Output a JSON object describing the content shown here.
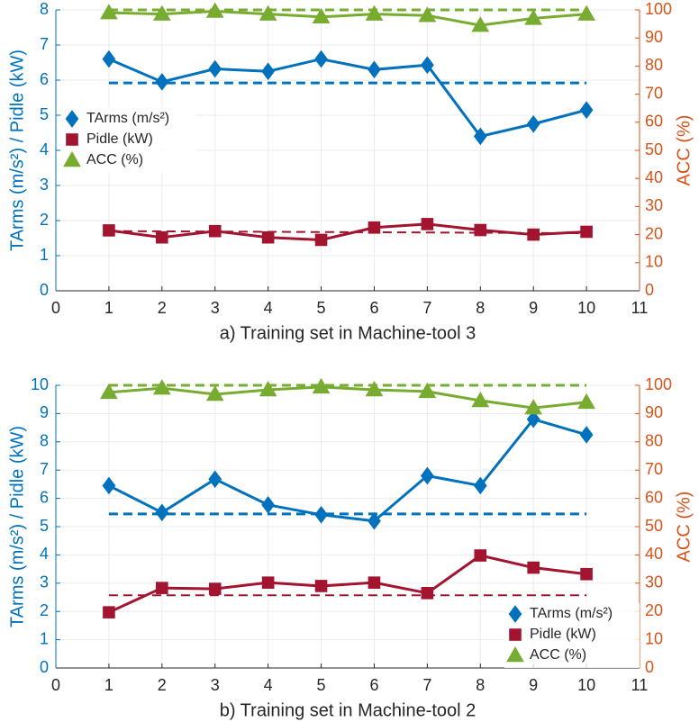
{
  "chart_data": [
    {
      "type": "line",
      "xlabel": "a) Training set in Machine-tool 3",
      "ylabel": "TArms (m/s²) / Pidle (kW)",
      "y2label": "ACC (%)",
      "x": [
        1,
        2,
        3,
        4,
        5,
        6,
        7,
        8,
        9,
        10
      ],
      "xlim": [
        0,
        11
      ],
      "xticks": [
        0,
        1,
        2,
        3,
        4,
        5,
        6,
        7,
        8,
        9,
        10,
        11
      ],
      "ylim": [
        0,
        8
      ],
      "yticks": [
        0,
        1,
        2,
        3,
        4,
        5,
        6,
        7,
        8
      ],
      "y2lim": [
        0,
        100
      ],
      "y2ticks": [
        0,
        10,
        20,
        30,
        40,
        50,
        60,
        70,
        80,
        90,
        100
      ],
      "grid": true,
      "legend": "center left",
      "y_color": "#0072bd",
      "y2_color": "#d95319",
      "series": [
        {
          "name": "TArms (m/s²)",
          "color": "#0072bd",
          "marker": "diamond",
          "values": [
            6.6,
            5.95,
            6.32,
            6.25,
            6.6,
            6.3,
            6.43,
            4.4,
            4.75,
            5.15
          ]
        },
        {
          "name": "Pidle (kW)",
          "color": "#a2142f",
          "marker": "square",
          "values": [
            1.72,
            1.52,
            1.7,
            1.52,
            1.45,
            1.8,
            1.9,
            1.73,
            1.6,
            1.68
          ]
        },
        {
          "name": "ACC (%)",
          "color": "#77ac30",
          "marker": "triangle",
          "axis": "y2",
          "values": [
            99,
            98.5,
            99.5,
            98.5,
            97.5,
            98.5,
            98,
            94.5,
            97,
            98.5
          ]
        }
      ],
      "reference_lines": [
        {
          "color": "#0072bd",
          "x": [
            1,
            10
          ],
          "values": [
            5.92,
            5.92
          ]
        },
        {
          "color": "#a2142f",
          "x": [
            1,
            10
          ],
          "values": [
            1.7,
            1.64
          ]
        },
        {
          "color": "#77ac30",
          "axis": "y2",
          "x": [
            1,
            10
          ],
          "values": [
            100,
            100
          ]
        }
      ]
    },
    {
      "type": "line",
      "xlabel": "b) Training set in Machine-tool 2",
      "ylabel": "TArms (m/s²) / Pidle (kW)",
      "y2label": "ACC (%)",
      "x": [
        1,
        2,
        3,
        4,
        5,
        6,
        7,
        8,
        9,
        10
      ],
      "xlim": [
        0,
        11
      ],
      "xticks": [
        0,
        1,
        2,
        3,
        4,
        5,
        6,
        7,
        8,
        9,
        10,
        11
      ],
      "ylim": [
        0,
        10
      ],
      "yticks": [
        0,
        1,
        2,
        3,
        4,
        5,
        6,
        7,
        8,
        9,
        10
      ],
      "y2lim": [
        0,
        100
      ],
      "y2ticks": [
        0,
        10,
        20,
        30,
        40,
        50,
        60,
        70,
        80,
        90,
        100
      ],
      "grid": true,
      "legend": "lower right",
      "y_color": "#0072bd",
      "y2_color": "#d95319",
      "series": [
        {
          "name": "TArms (m/s²)",
          "color": "#0072bd",
          "marker": "diamond",
          "values": [
            6.45,
            5.5,
            6.68,
            5.77,
            5.42,
            5.2,
            6.8,
            6.45,
            8.8,
            8.25
          ]
        },
        {
          "name": "Pidle (kW)",
          "color": "#a2142f",
          "marker": "square",
          "values": [
            1.97,
            2.83,
            2.8,
            3.02,
            2.9,
            3.02,
            2.65,
            3.98,
            3.55,
            3.32
          ]
        },
        {
          "name": "ACC (%)",
          "color": "#77ac30",
          "marker": "triangle",
          "axis": "y2",
          "values": [
            97.5,
            99,
            96.8,
            98.4,
            99.4,
            98.4,
            97.8,
            94.6,
            92,
            94
          ]
        }
      ],
      "reference_lines": [
        {
          "color": "#0072bd",
          "x": [
            1,
            10
          ],
          "values": [
            5.45,
            5.45
          ]
        },
        {
          "color": "#a2142f",
          "x": [
            1,
            10
          ],
          "values": [
            2.57,
            2.57
          ]
        },
        {
          "color": "#77ac30",
          "axis": "y2",
          "x": [
            1,
            10
          ],
          "values": [
            100,
            100
          ]
        }
      ]
    }
  ]
}
